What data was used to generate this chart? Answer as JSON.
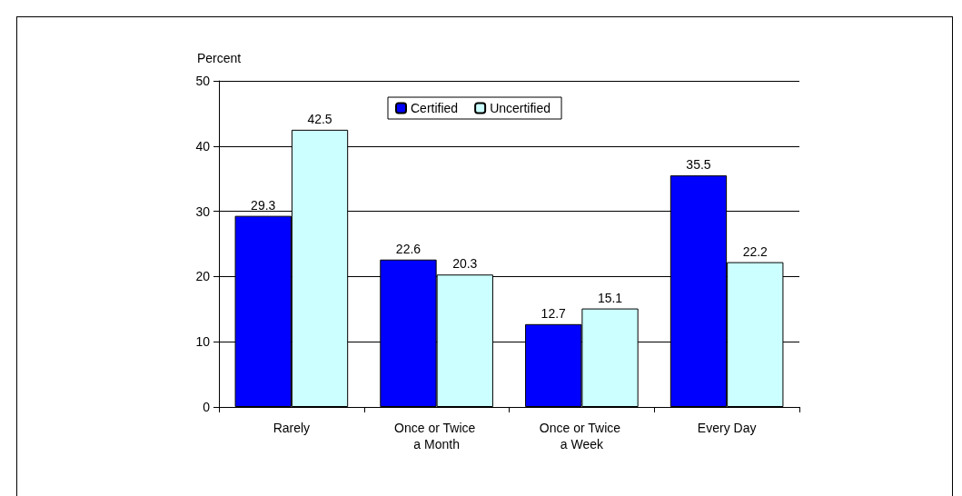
{
  "chart_data": {
    "type": "bar",
    "ylabel": "Percent",
    "categories": [
      "Rarely",
      "Once or Twice a Month",
      "Once or Twice a Week",
      "Every Day"
    ],
    "series": [
      {
        "name": "Certified",
        "color": "#0000ff",
        "values": [
          29.3,
          22.6,
          12.7,
          35.5
        ]
      },
      {
        "name": "Uncertified",
        "color": "#ccffff",
        "values": [
          42.5,
          20.3,
          15.1,
          22.2
        ]
      }
    ],
    "ylim": [
      0,
      50
    ],
    "yticks": [
      0,
      10,
      20,
      30,
      40,
      50
    ],
    "grid": "y",
    "legend": "top",
    "data_labels": true
  }
}
